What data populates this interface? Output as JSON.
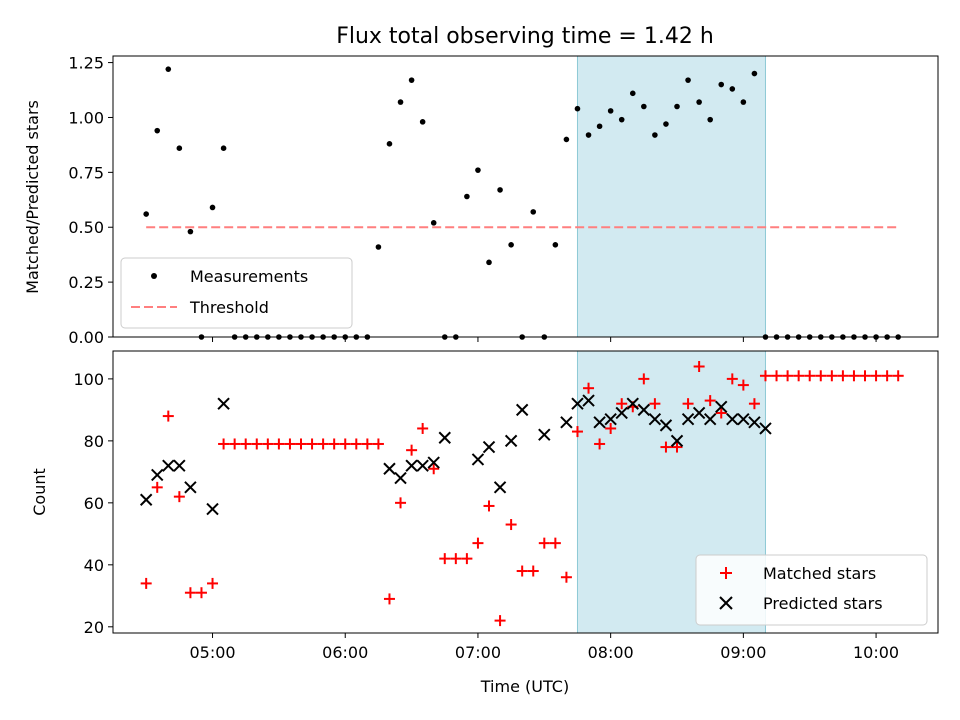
{
  "chart_data": [
    {
      "type": "scatter",
      "title": "Flux total observing time = 1.42 h",
      "xlabel": "",
      "ylabel": "Matched/Predicted stars",
      "ylim": [
        0,
        1.28
      ],
      "yticks": [
        "0.00",
        "0.25",
        "0.50",
        "0.75",
        "1.00",
        "1.25"
      ],
      "shaded_span": [
        "07:45",
        "09:10"
      ],
      "shade_color": "#add8e6",
      "legend_position": "lower-left",
      "threshold": {
        "name": "Threshold",
        "value": 0.5,
        "x_range": [
          "04:30",
          "10:10"
        ],
        "color": "#ff7f7f"
      },
      "series": [
        {
          "name": "Measurements",
          "color": "#000000",
          "x": [
            "04:30",
            "04:35",
            "04:40",
            "04:45",
            "04:50",
            "04:55",
            "05:00",
            "05:05",
            "05:10",
            "05:15",
            "05:20",
            "05:25",
            "05:30",
            "05:35",
            "05:40",
            "05:45",
            "05:50",
            "05:55",
            "06:00",
            "06:05",
            "06:10",
            "06:15",
            "06:20",
            "06:25",
            "06:30",
            "06:35",
            "06:40",
            "06:45",
            "06:50",
            "06:55",
            "07:00",
            "07:05",
            "07:10",
            "07:15",
            "07:20",
            "07:25",
            "07:30",
            "07:35",
            "07:40",
            "07:45",
            "07:50",
            "07:55",
            "08:00",
            "08:05",
            "08:10",
            "08:15",
            "08:20",
            "08:25",
            "08:30",
            "08:35",
            "08:40",
            "08:45",
            "08:50",
            "08:55",
            "09:00",
            "09:05",
            "09:10",
            "09:15",
            "09:20",
            "09:25",
            "09:30",
            "09:35",
            "09:40",
            "09:45",
            "09:50",
            "09:55",
            "10:00",
            "10:05",
            "10:10"
          ],
          "y": [
            0.56,
            0.94,
            1.22,
            0.86,
            0.48,
            0.0,
            0.59,
            0.86,
            0.0,
            0.0,
            0.0,
            0.0,
            0.0,
            0.0,
            0.0,
            0.0,
            0.0,
            0.0,
            0.0,
            0.0,
            0.0,
            0.41,
            0.88,
            1.07,
            1.17,
            0.98,
            0.52,
            0.0,
            0.0,
            0.64,
            0.76,
            0.34,
            0.67,
            0.42,
            0.0,
            0.57,
            0.0,
            0.42,
            0.9,
            1.04,
            0.92,
            0.96,
            1.03,
            0.99,
            1.11,
            1.05,
            0.92,
            0.97,
            1.05,
            1.17,
            1.07,
            0.99,
            1.15,
            1.13,
            1.07,
            1.2,
            0.0,
            0.0,
            0.0,
            0.0,
            0.0,
            0.0,
            0.0,
            0.0,
            0.0,
            0.0,
            0.0,
            0.0,
            0.0
          ]
        }
      ]
    },
    {
      "type": "scatter",
      "title": "",
      "xlabel": "Time (UTC)",
      "ylabel": "Count",
      "ylim": [
        18,
        109
      ],
      "yticks": [
        "20",
        "40",
        "60",
        "80",
        "100"
      ],
      "xticks": [
        "05:00",
        "06:00",
        "07:00",
        "08:00",
        "09:00",
        "10:00"
      ],
      "xlim": [
        "04:15",
        "10:28"
      ],
      "shaded_span": [
        "07:45",
        "09:10"
      ],
      "shade_color": "#add8e6",
      "legend_position": "lower-right",
      "series": [
        {
          "name": "Matched stars",
          "marker": "+",
          "color": "#ff0000",
          "x": [
            "04:30",
            "04:35",
            "04:40",
            "04:45",
            "04:50",
            "04:55",
            "05:00",
            "05:05",
            "05:10",
            "05:15",
            "05:20",
            "05:25",
            "05:30",
            "05:35",
            "05:40",
            "05:45",
            "05:50",
            "05:55",
            "06:00",
            "06:05",
            "06:10",
            "06:15",
            "06:20",
            "06:25",
            "06:30",
            "06:35",
            "06:40",
            "06:45",
            "06:50",
            "06:55",
            "07:00",
            "07:05",
            "07:10",
            "07:15",
            "07:20",
            "07:25",
            "07:30",
            "07:35",
            "07:40",
            "07:45",
            "07:50",
            "07:55",
            "08:00",
            "08:05",
            "08:10",
            "08:15",
            "08:20",
            "08:25",
            "08:30",
            "08:35",
            "08:40",
            "08:45",
            "08:50",
            "08:55",
            "09:00",
            "09:05",
            "09:10",
            "09:15",
            "09:20",
            "09:25",
            "09:30",
            "09:35",
            "09:40",
            "09:45",
            "09:50",
            "09:55",
            "10:00",
            "10:05",
            "10:10"
          ],
          "y": [
            34,
            65,
            88,
            62,
            31,
            31,
            34,
            79,
            79,
            79,
            79,
            79,
            79,
            79,
            79,
            79,
            79,
            79,
            79,
            79,
            79,
            79,
            29,
            60,
            77,
            84,
            71,
            42,
            42,
            42,
            47,
            59,
            22,
            53,
            38,
            38,
            47,
            47,
            36,
            83,
            97,
            79,
            84,
            92,
            91,
            100,
            92,
            78,
            78,
            92,
            104,
            93,
            89,
            100,
            98,
            92,
            101,
            101,
            101,
            101,
            101,
            101,
            101,
            101,
            101,
            101,
            101,
            101,
            101
          ]
        },
        {
          "name": "Predicted stars",
          "marker": "x",
          "color": "#000000",
          "x": [
            "04:30",
            "04:35",
            "04:40",
            "04:45",
            "04:50",
            "05:00",
            "05:05",
            "06:20",
            "06:25",
            "06:30",
            "06:35",
            "06:40",
            "06:45",
            "07:00",
            "07:05",
            "07:10",
            "07:15",
            "07:20",
            "07:30",
            "07:40",
            "07:45",
            "07:50",
            "07:55",
            "08:00",
            "08:05",
            "08:10",
            "08:15",
            "08:20",
            "08:25",
            "08:30",
            "08:35",
            "08:40",
            "08:45",
            "08:50",
            "08:55",
            "09:00",
            "09:05",
            "09:10"
          ],
          "y": [
            61,
            69,
            72,
            72,
            65,
            58,
            92,
            71,
            68,
            72,
            72,
            73,
            81,
            74,
            78,
            65,
            80,
            90,
            82,
            86,
            92,
            93,
            86,
            87,
            89,
            92,
            90,
            87,
            85,
            80,
            87,
            89,
            87,
            91,
            87,
            87,
            86,
            84
          ]
        }
      ]
    }
  ]
}
